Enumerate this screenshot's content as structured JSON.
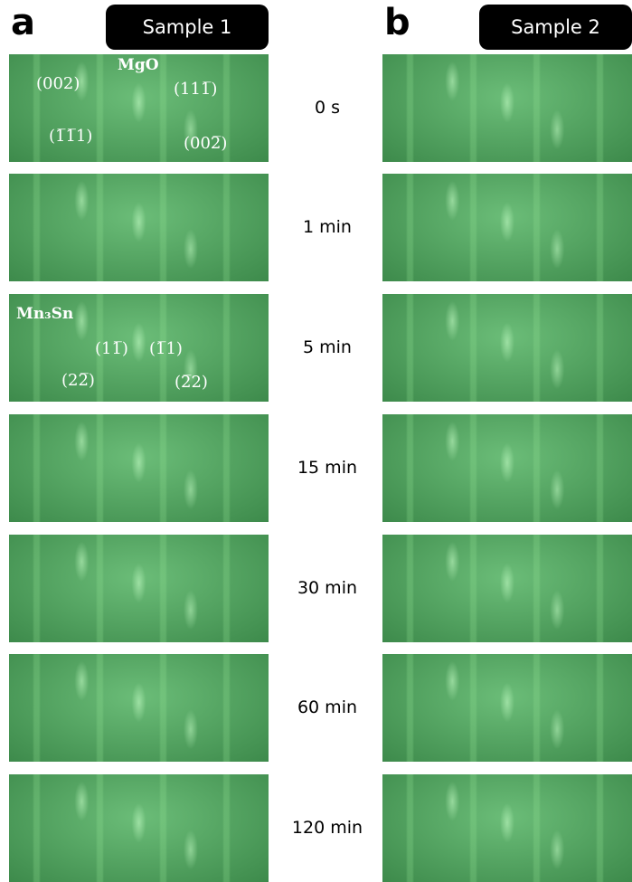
{
  "panel_labels": [
    "a",
    "b"
  ],
  "samples": [
    "Sample 1",
    "Sample 2"
  ],
  "times": [
    "0 s",
    "1 min",
    "5 min",
    "15 min",
    "30 min",
    "60 min",
    "120 min"
  ],
  "annotations": {
    "mgo": {
      "title": "MgO",
      "indices": [
        "(002)",
        "(111̅)",
        "(1̅1̅1)",
        "(002̅)"
      ]
    },
    "mn3sn": {
      "title": "Mn₃Sn",
      "indices": [
        "(11̅)",
        "(1̅1)",
        "(22̅)",
        "(2̅2)"
      ]
    }
  }
}
